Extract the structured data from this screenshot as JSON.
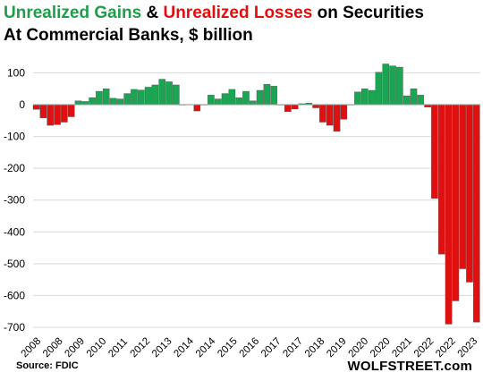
{
  "title": {
    "gains": "Unrealized Gains",
    "amp": "&",
    "losses": "Unrealized Losses",
    "rest": "on Securities",
    "subtitle": "At Commercial  Banks, $ billion"
  },
  "source": "Source: FDIC",
  "brand": "WOLFSTREET.com",
  "colors": {
    "gain": "#1aa552",
    "loss": "#e01010",
    "gains_title": "#1f9e4a",
    "losses_title": "#e01010",
    "grid": "#d9d9d9"
  },
  "chart_data": {
    "type": "bar",
    "title": "Unrealized Gains & Unrealized Losses on Securities",
    "subtitle": "At Commercial  Banks, $ billion",
    "ylim": [
      -700,
      150
    ],
    "yticks": [
      100,
      0,
      -100,
      -200,
      -300,
      -400,
      -500,
      -600,
      -700
    ],
    "grid": true,
    "x_labels": [
      "2008",
      "2008",
      "2009",
      "2010",
      "2011",
      "2012",
      "2013",
      "2014",
      "2014",
      "2015",
      "2016",
      "2017",
      "2017",
      "2018",
      "2019",
      "2020",
      "2020",
      "2021",
      "2022",
      "2022",
      "2023"
    ],
    "values": [
      -15,
      -42,
      -65,
      -63,
      -55,
      -38,
      12,
      10,
      22,
      42,
      50,
      20,
      18,
      35,
      48,
      46,
      55,
      62,
      80,
      72,
      62,
      0,
      1,
      -20,
      0,
      30,
      18,
      35,
      48,
      22,
      42,
      12,
      45,
      64,
      58,
      0,
      -22,
      -14,
      3,
      5,
      -10,
      -55,
      -65,
      -84,
      -46,
      0,
      40,
      50,
      45,
      102,
      128,
      122,
      118,
      28,
      50,
      30,
      -8,
      -295,
      -470,
      -690,
      -617,
      -516,
      -558,
      -684
    ]
  }
}
